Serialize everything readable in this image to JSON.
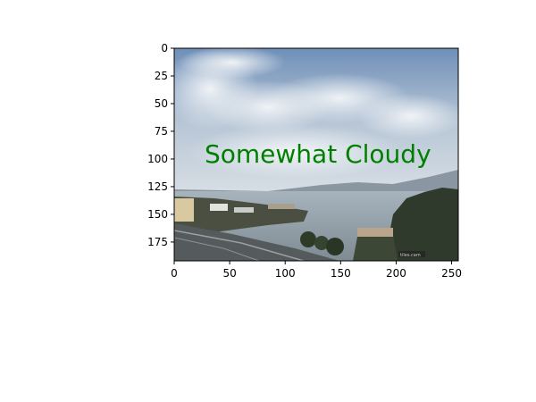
{
  "image": {
    "overlay_text": "Somewhat Cloudy",
    "overlay_color": "#008000",
    "watermark": "tiles.cam",
    "description_colors": {
      "sky": "#a9bdd3",
      "cloud": "#e6eaee",
      "water": "#8d9aa3",
      "land": "#3a3f36"
    }
  },
  "axes": {
    "x_ticks": [
      "0",
      "50",
      "100",
      "150",
      "200",
      "250"
    ],
    "y_ticks": [
      "0",
      "25",
      "50",
      "75",
      "100",
      "125",
      "150",
      "175"
    ],
    "xlim": [
      0,
      256
    ],
    "ylim": [
      192,
      0
    ]
  }
}
